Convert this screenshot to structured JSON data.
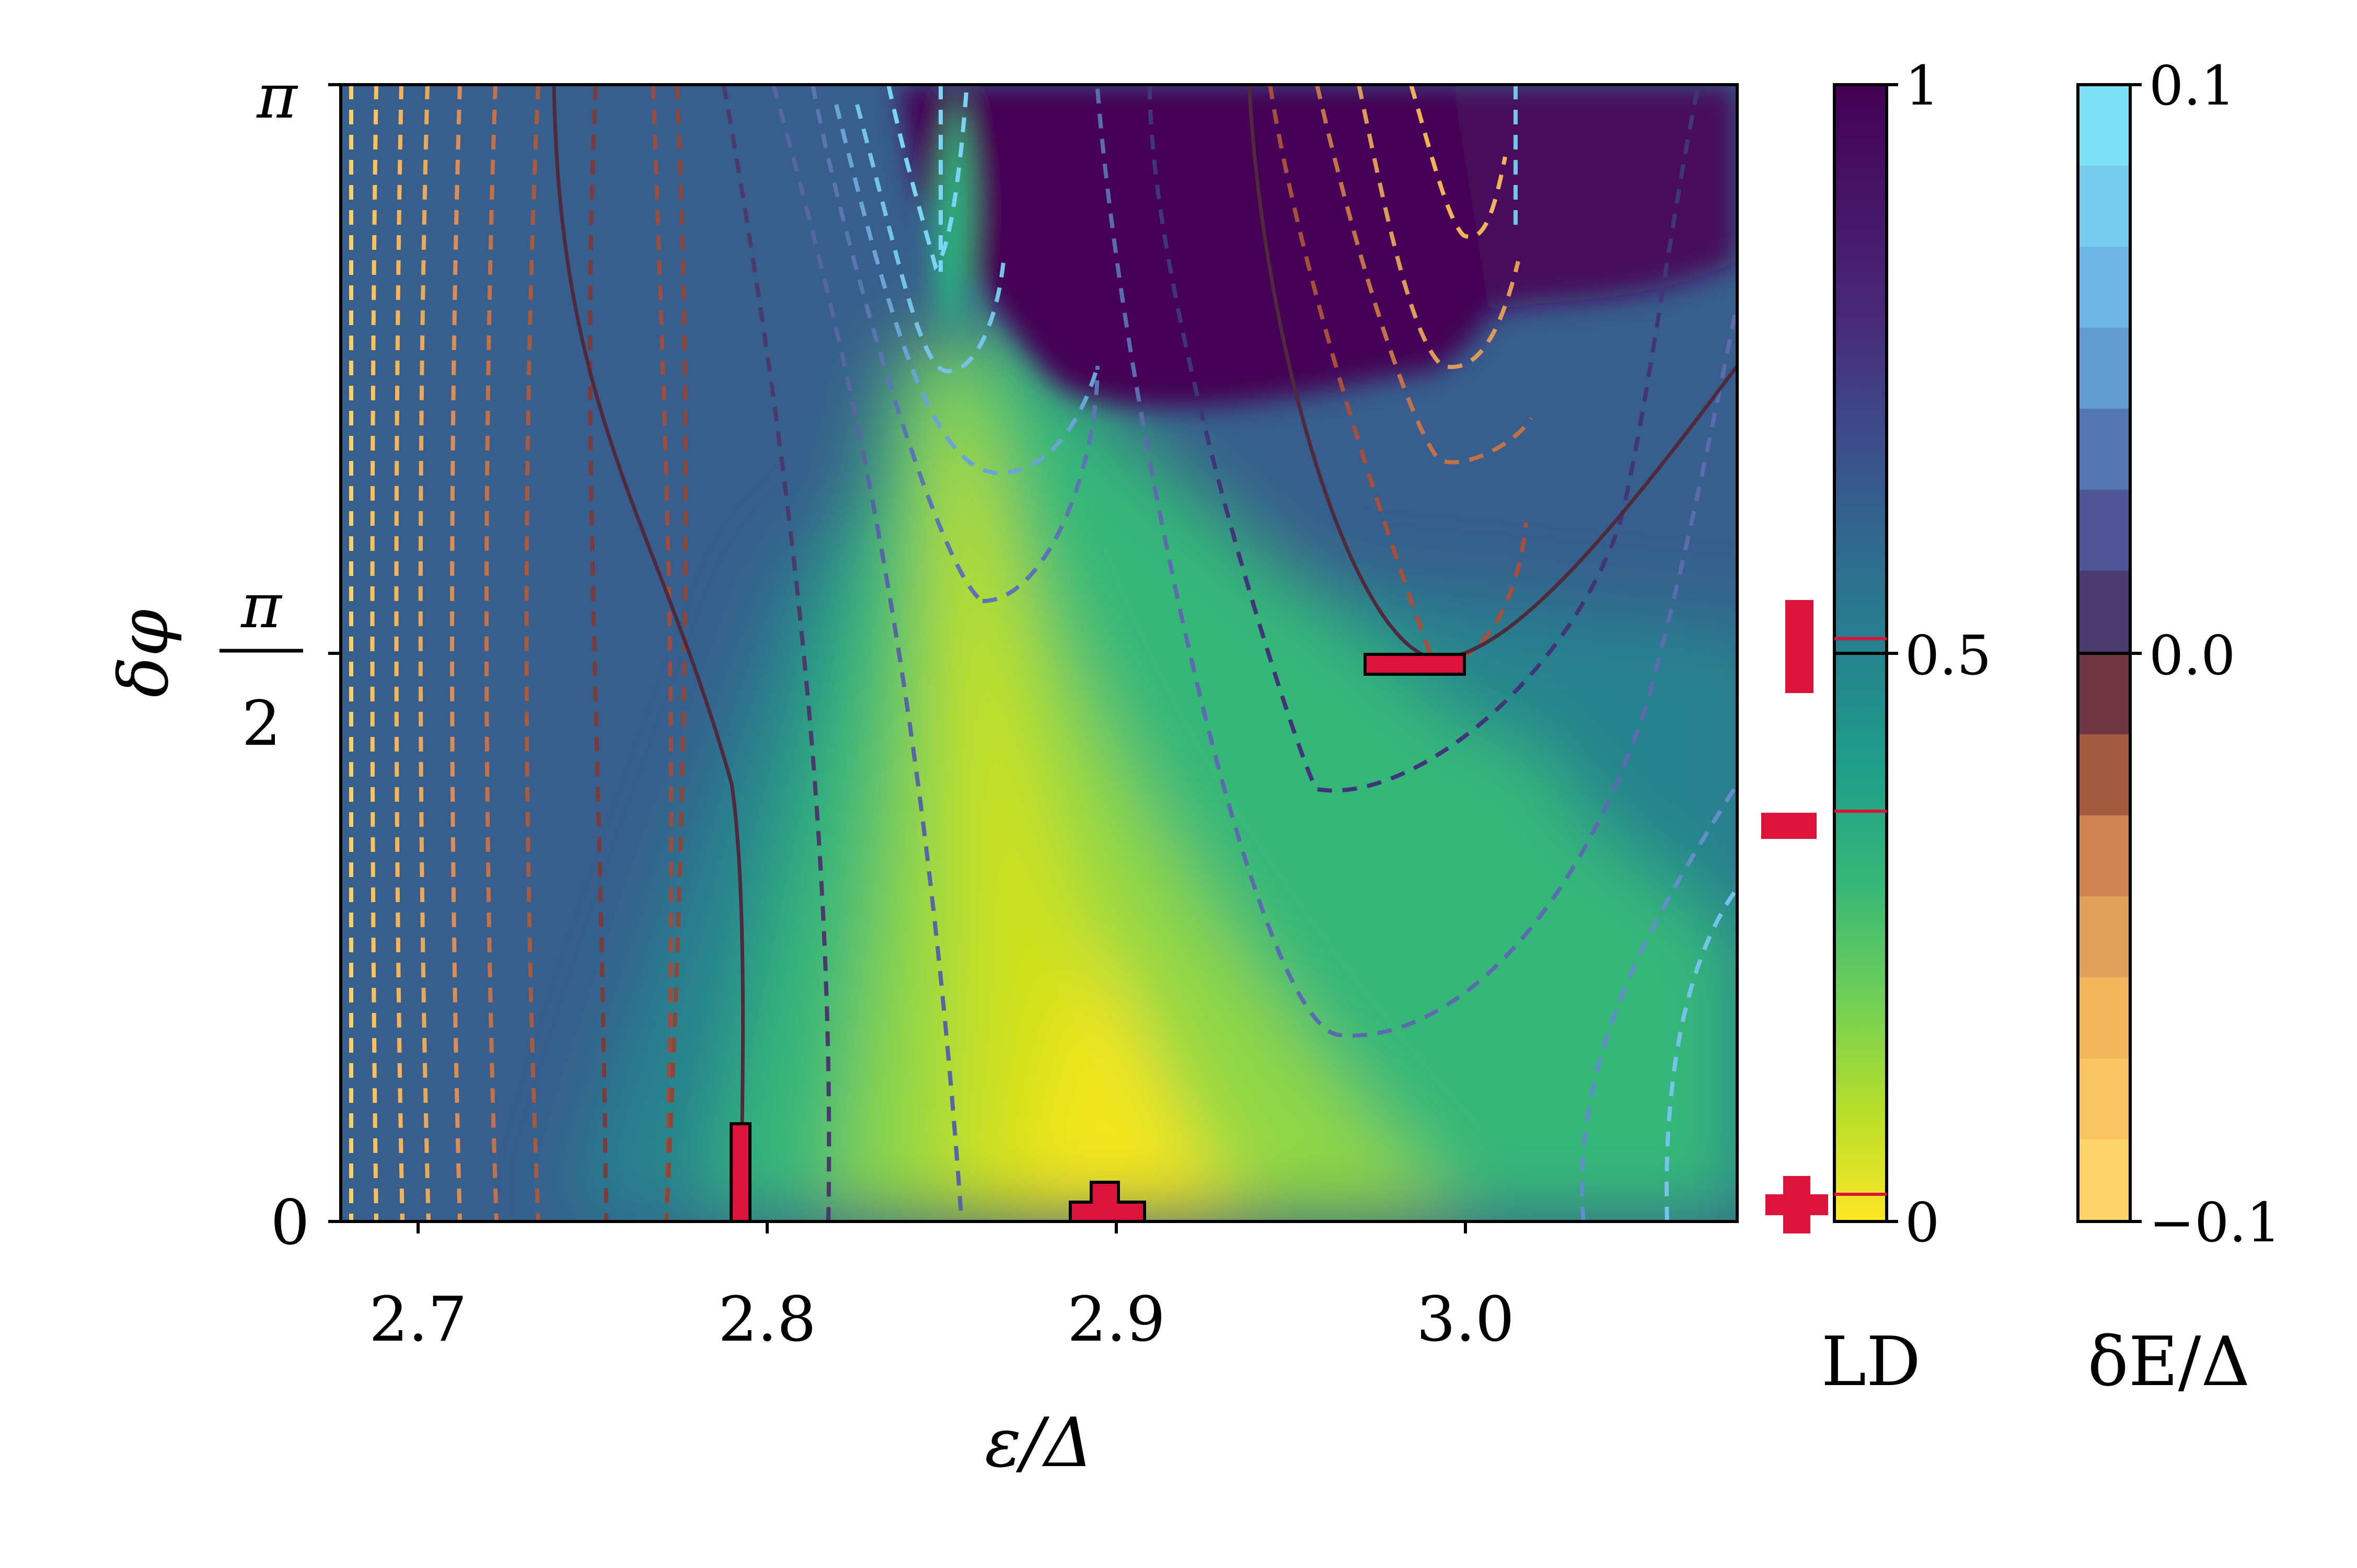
{
  "chart_data": {
    "type": "heatmap",
    "title": "",
    "xlabel": "ε/Δ",
    "ylabel": "δφ",
    "xlim": [
      2.678,
      3.078
    ],
    "ylim": [
      0,
      3.14159
    ],
    "x_ticks": [
      "2.7",
      "2.8",
      "2.9",
      "3.0"
    ],
    "x_tick_values": [
      2.7,
      2.8,
      2.9,
      3.0
    ],
    "y_ticks": [
      "0",
      "π/2",
      "π"
    ],
    "y_tick_parts": {
      "zero": "0",
      "pi": "π",
      "half_num": "π",
      "half_den": "2"
    },
    "y_tick_values": [
      0,
      1.5708,
      3.14159
    ],
    "heatmap": {
      "quantity": "LD",
      "colormap": "viridis-reversed",
      "range": [
        0,
        1
      ],
      "low_color": "#fde725",
      "high_color": "#440154",
      "description_of_regions": [
        {
          "region": "yellow ridge",
          "from_x": 2.9,
          "at_y": 0,
          "to_x": 2.85,
          "at_y_top": 2.7,
          "LD": 0.05
        },
        {
          "region": "dark cap left",
          "x": [
            2.838,
            2.945
          ],
          "y_above": 2.35,
          "LD": 0.98
        },
        {
          "region": "dark cap right",
          "x": [
            2.925,
            3.03
          ],
          "y_above": 2.2,
          "LD": 0.98
        }
      ]
    },
    "colorbars": [
      {
        "name": "LD",
        "label": "LD",
        "ticks": [
          "0",
          "0.5",
          "1"
        ],
        "tick_values": [
          0,
          0.5,
          1
        ],
        "marked_levels": [
          0.5,
          0.35,
          0.02,
          0.56
        ]
      },
      {
        "name": "dE",
        "label": "δE/Δ",
        "ticks": [
          "−0.1",
          "0.0",
          "0.1"
        ],
        "tick_values": [
          -0.1,
          0.0,
          0.1
        ],
        "levels": 14,
        "reference_line": 0.0
      }
    ],
    "contours": {
      "quantity": "δE/Δ",
      "style": "dashed",
      "solid_zero_contour": true,
      "description": "dashed iso-lines of δE/Δ colored by the discrete δE/Δ colormap; solid dark line is δE/Δ = 0"
    },
    "markers": [
      {
        "shape": "vertical-bar",
        "x": 2.792,
        "y": [
          0,
          0.27
        ]
      },
      {
        "shape": "t-shape",
        "x": 2.898,
        "y": [
          0,
          0.11
        ]
      },
      {
        "shape": "horizontal-bar",
        "x": [
          2.973,
          3.0
        ],
        "y": 1.52
      }
    ],
    "side_symbols": [
      {
        "symbol": "vertical-bar",
        "LD": 0.56
      },
      {
        "symbol": "minus",
        "LD": 0.35
      },
      {
        "symbol": "plus",
        "LD": 0.02
      }
    ],
    "marker_color": "#dc143c",
    "grid": false
  }
}
